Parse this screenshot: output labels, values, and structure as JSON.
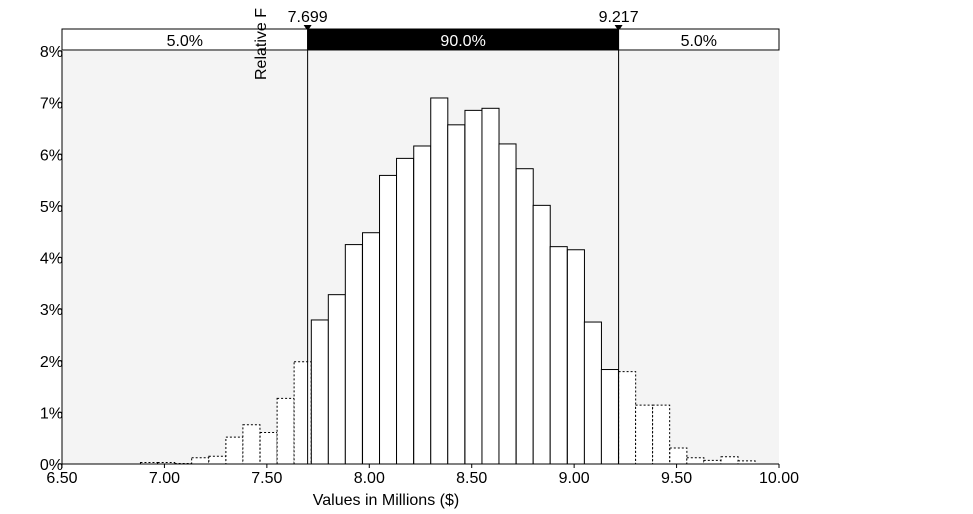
{
  "chart_data": {
    "type": "bar",
    "title": "",
    "xlabel": "Values in Millions ($)",
    "ylabel": "Relative F",
    "xlim": [
      6.5,
      10.0
    ],
    "ylim": [
      0,
      8
    ],
    "x_ticks": [
      "6.50",
      "7.00",
      "7.50",
      "8.00",
      "8.50",
      "9.00",
      "9.50",
      "10.00"
    ],
    "y_ticks": [
      "0%",
      "1%",
      "2%",
      "3%",
      "4%",
      "5%",
      "6%",
      "7%",
      "8%"
    ],
    "bin_width": 0.0833,
    "bins_x": [
      6.883,
      6.967,
      7.05,
      7.133,
      7.217,
      7.3,
      7.383,
      7.467,
      7.55,
      7.633,
      7.717,
      7.8,
      7.883,
      7.967,
      8.05,
      8.133,
      8.217,
      8.3,
      8.383,
      8.467,
      8.55,
      8.633,
      8.717,
      8.8,
      8.883,
      8.967,
      9.05,
      9.133,
      9.217,
      9.3,
      9.383,
      9.467,
      9.55,
      9.633,
      9.717,
      9.8
    ],
    "values": [
      0.03,
      0.03,
      0.01,
      0.12,
      0.15,
      0.52,
      0.76,
      0.61,
      1.27,
      1.98,
      2.79,
      3.28,
      4.25,
      4.48,
      5.59,
      5.92,
      6.16,
      7.09,
      6.57,
      6.85,
      6.89,
      6.2,
      5.72,
      5.01,
      4.21,
      4.15,
      2.75,
      1.83,
      1.79,
      1.14,
      1.14,
      0.31,
      0.12,
      0.07,
      0.14,
      0.06
    ],
    "delimiters": [
      {
        "value": 7.699,
        "label": "7.699"
      },
      {
        "value": 9.217,
        "label": "9.217"
      }
    ],
    "regions": [
      {
        "label": "5.0%",
        "percent": 5.0,
        "highlight": false
      },
      {
        "label": "90.0%",
        "percent": 90.0,
        "highlight": true
      },
      {
        "label": "5.0%",
        "percent": 5.0,
        "highlight": false
      }
    ],
    "colors": {
      "plot_background": "#f4f4f4",
      "bar_fill": "#ffffff",
      "bar_stroke": "#000000",
      "highlight_band": "#000000",
      "highlight_text": "#ffffff"
    },
    "grid": false,
    "legend": "none"
  }
}
